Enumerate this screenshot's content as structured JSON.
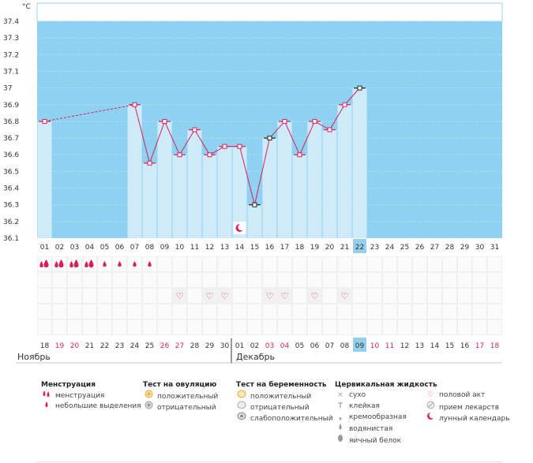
{
  "unit_label": "°C",
  "chart_data": {
    "type": "bar-line",
    "unit": "°C",
    "y_ticks": [
      "37.4",
      "37.3",
      "37.2",
      "37.1",
      "37",
      "36.9",
      "36.8",
      "36.7",
      "36.6",
      "36.5",
      "36.4",
      "36.3",
      "36.2",
      "36.1"
    ],
    "ylim": [
      36.1,
      37.4
    ],
    "cycle_days": [
      "01",
      "02",
      "03",
      "04",
      "05",
      "06",
      "07",
      "08",
      "09",
      "10",
      "11",
      "12",
      "13",
      "14",
      "15",
      "16",
      "17",
      "18",
      "19",
      "20",
      "21",
      "22",
      "23",
      "24",
      "25",
      "26",
      "27",
      "28",
      "29",
      "30",
      "31"
    ],
    "highlight_day_index": 21,
    "temperatures": [
      36.8,
      null,
      null,
      null,
      null,
      null,
      36.9,
      36.55,
      36.8,
      36.6,
      36.75,
      36.6,
      36.65,
      36.65,
      36.3,
      36.7,
      36.8,
      36.6,
      36.8,
      36.75,
      36.9,
      37.0,
      null,
      null,
      null,
      null,
      null,
      null,
      null,
      null,
      null
    ],
    "dashed_segment": [
      0,
      6
    ],
    "marker_outline_days": [
      14,
      15,
      21
    ],
    "calendar_dates": [
      "18",
      "19",
      "20",
      "21",
      "22",
      "23",
      "24",
      "25",
      "26",
      "27",
      "28",
      "29",
      "30",
      "01",
      "02",
      "03",
      "04",
      "05",
      "06",
      "07",
      "08",
      "09",
      "10",
      "11",
      "12",
      "13",
      "14",
      "15",
      "16",
      "17",
      "18"
    ],
    "calendar_red_indices": [
      1,
      2,
      8,
      9,
      15,
      16,
      22,
      23,
      29,
      30
    ],
    "highlight_date_index": 21,
    "menstruation_heavy": [
      0,
      1,
      2,
      3
    ],
    "menstruation_light": [
      4,
      5,
      6,
      7
    ],
    "intercourse": [
      9,
      11,
      12,
      15,
      16,
      18,
      20
    ],
    "moon_day": 13
  },
  "months": {
    "first": "Ноябрь",
    "second": "Декабрь"
  },
  "legend": {
    "menstruation": {
      "title": "Менструация",
      "items": [
        {
          "icon": "drops-icon",
          "label": "менструация"
        },
        {
          "icon": "drop-icon",
          "label": "небольшие выделения"
        }
      ]
    },
    "ovulation": {
      "title": "Тест на овуляцию",
      "items": [
        {
          "icon": "positive-circle-icon",
          "label": "положительный"
        },
        {
          "icon": "negative-circle-icon",
          "label": "отрицательный"
        }
      ]
    },
    "pregnancy": {
      "title": "Тест на беременность",
      "items": [
        {
          "icon": "positive-test-icon",
          "label": "положительный"
        },
        {
          "icon": "negative-test-icon",
          "label": "отрицательный"
        },
        {
          "icon": "weak-test-icon",
          "label": "слабоположительный"
        }
      ]
    },
    "cervical": {
      "title": "Цервикальная жидкость",
      "items": [
        {
          "icon": "dry-icon",
          "label": "сухо"
        },
        {
          "icon": "sticky-icon",
          "label": "клейкая"
        },
        {
          "icon": "creamy-icon",
          "label": "кремообразная"
        },
        {
          "icon": "watery-icon",
          "label": "водянистая"
        },
        {
          "icon": "egg-white-icon",
          "label": "яичный белок"
        }
      ]
    },
    "other": {
      "items": [
        {
          "icon": "heart-icon",
          "label": "половой акт"
        },
        {
          "icon": "pill-icon",
          "label": "прием лекарств"
        },
        {
          "icon": "moon-icon",
          "label": "лунный календарь"
        }
      ]
    }
  },
  "colors": {
    "plot_bg": "#8fd1f0",
    "bar_fill": "#cfebfa",
    "line": "#d81e5b",
    "highlight": "#94d0ec",
    "red_text": "#d6245a"
  }
}
